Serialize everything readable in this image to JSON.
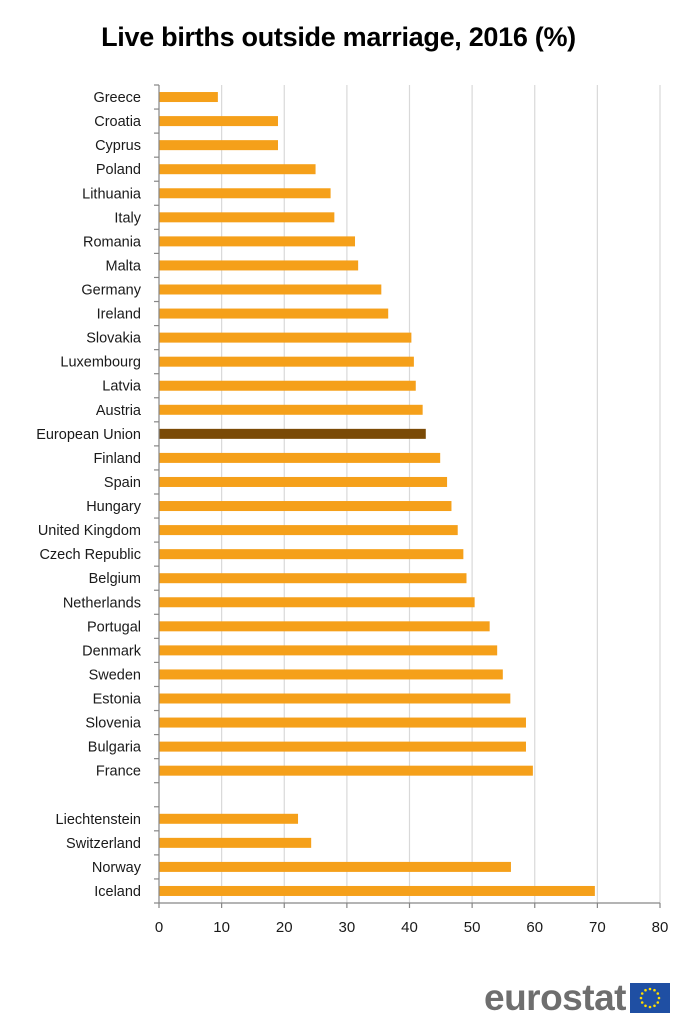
{
  "chart_data": {
    "type": "bar",
    "orientation": "horizontal",
    "title": "Live births outside marriage, 2016 (%)",
    "xlabel": "",
    "ylabel": "",
    "xlim": [
      0,
      80
    ],
    "x_ticks": [
      "0",
      "10",
      "20",
      "30",
      "40",
      "50",
      "60",
      "70",
      "80"
    ],
    "grid": true,
    "categories": [
      "Greece",
      "Croatia",
      "Cyprus",
      "Poland",
      "Lithuania",
      "Italy",
      "Romania",
      "Malta",
      "Germany",
      "Ireland",
      "Slovakia",
      "Luxembourg",
      "Latvia",
      "Austria",
      "European Union",
      "Finland",
      "Spain",
      "Hungary",
      "United Kingdom",
      "Czech Republic",
      "Belgium",
      "Netherlands",
      "Portugal",
      "Denmark",
      "Sweden",
      "Estonia",
      "Slovenia",
      "Bulgaria",
      "France",
      "",
      "Liechtenstein",
      "Switzerland",
      "Norway",
      "Iceland"
    ],
    "values": [
      9.4,
      19.0,
      19.0,
      25.0,
      27.4,
      28.0,
      31.3,
      31.8,
      35.5,
      36.6,
      40.3,
      40.7,
      41.0,
      42.1,
      42.6,
      44.9,
      46.0,
      46.7,
      47.7,
      48.6,
      49.1,
      50.4,
      52.8,
      54.0,
      54.9,
      56.1,
      58.6,
      58.6,
      59.7,
      null,
      22.2,
      24.3,
      56.2,
      69.6
    ],
    "highlight": "European Union",
    "colors": {
      "bar": "#f5a01a",
      "highlight": "#7a4a06",
      "grid": "#d9d9d9",
      "axis": "#868686"
    }
  },
  "branding": {
    "logo_text": "eurostat",
    "flag_color": "#1f4fa3",
    "star_color": "#ffdd00"
  }
}
